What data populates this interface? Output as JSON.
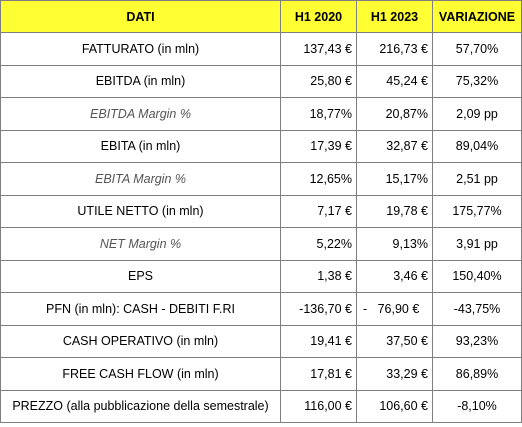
{
  "header": {
    "col_label": "DATI",
    "col_2020": "H1 2020",
    "col_2023": "H1 2023",
    "col_var": "VARIAZIONE",
    "background": "#ffff33"
  },
  "rows": [
    {
      "label": "FATTURATO (in mln)",
      "italic": false,
      "h1_2020": "137,43 €",
      "h1_2023": "216,73 €",
      "variazione": "57,70%"
    },
    {
      "label": "EBITDA (in mln)",
      "italic": false,
      "h1_2020": "25,80 €",
      "h1_2023": "45,24 €",
      "variazione": "75,32%"
    },
    {
      "label": "EBITDA Margin %",
      "italic": true,
      "h1_2020": "18,77%",
      "h1_2023": "20,87%",
      "variazione": "2,09 pp"
    },
    {
      "label": "EBITA (in mln)",
      "italic": false,
      "h1_2020": "17,39 €",
      "h1_2023": "32,87 €",
      "variazione": "89,04%"
    },
    {
      "label": "EBITA Margin %",
      "italic": true,
      "h1_2020": "12,65%",
      "h1_2023": "15,17%",
      "variazione": "2,51 pp"
    },
    {
      "label": "UTILE NETTO (in mln)",
      "italic": false,
      "h1_2020": "7,17 €",
      "h1_2023": "19,78 €",
      "variazione": "175,77%"
    },
    {
      "label": "NET Margin %",
      "italic": true,
      "h1_2020": "5,22%",
      "h1_2023": "9,13%",
      "variazione": "3,91 pp"
    },
    {
      "label": "EPS",
      "italic": false,
      "h1_2020": "1,38 €",
      "h1_2023": "3,46 €",
      "variazione": "150,40%"
    },
    {
      "label": "PFN (in mln): CASH - DEBITI F.RI",
      "italic": false,
      "h1_2020": "-136,70 €",
      "h1_2023": "-   76,90 €",
      "variazione": "-43,75%"
    },
    {
      "label": "CASH OPERATIVO (in mln)",
      "italic": false,
      "h1_2020": "19,41 €",
      "h1_2023": "37,50 €",
      "variazione": "93,23%"
    },
    {
      "label": "FREE CASH FLOW (in mln)",
      "italic": false,
      "h1_2020": "17,81 €",
      "h1_2023": "33,29 €",
      "variazione": "86,89%"
    },
    {
      "label": "PREZZO (alla pubblicazione della semestrale)",
      "italic": false,
      "h1_2020": "116,00 €",
      "h1_2023": "106,60 €",
      "variazione": "-8,10%"
    }
  ]
}
